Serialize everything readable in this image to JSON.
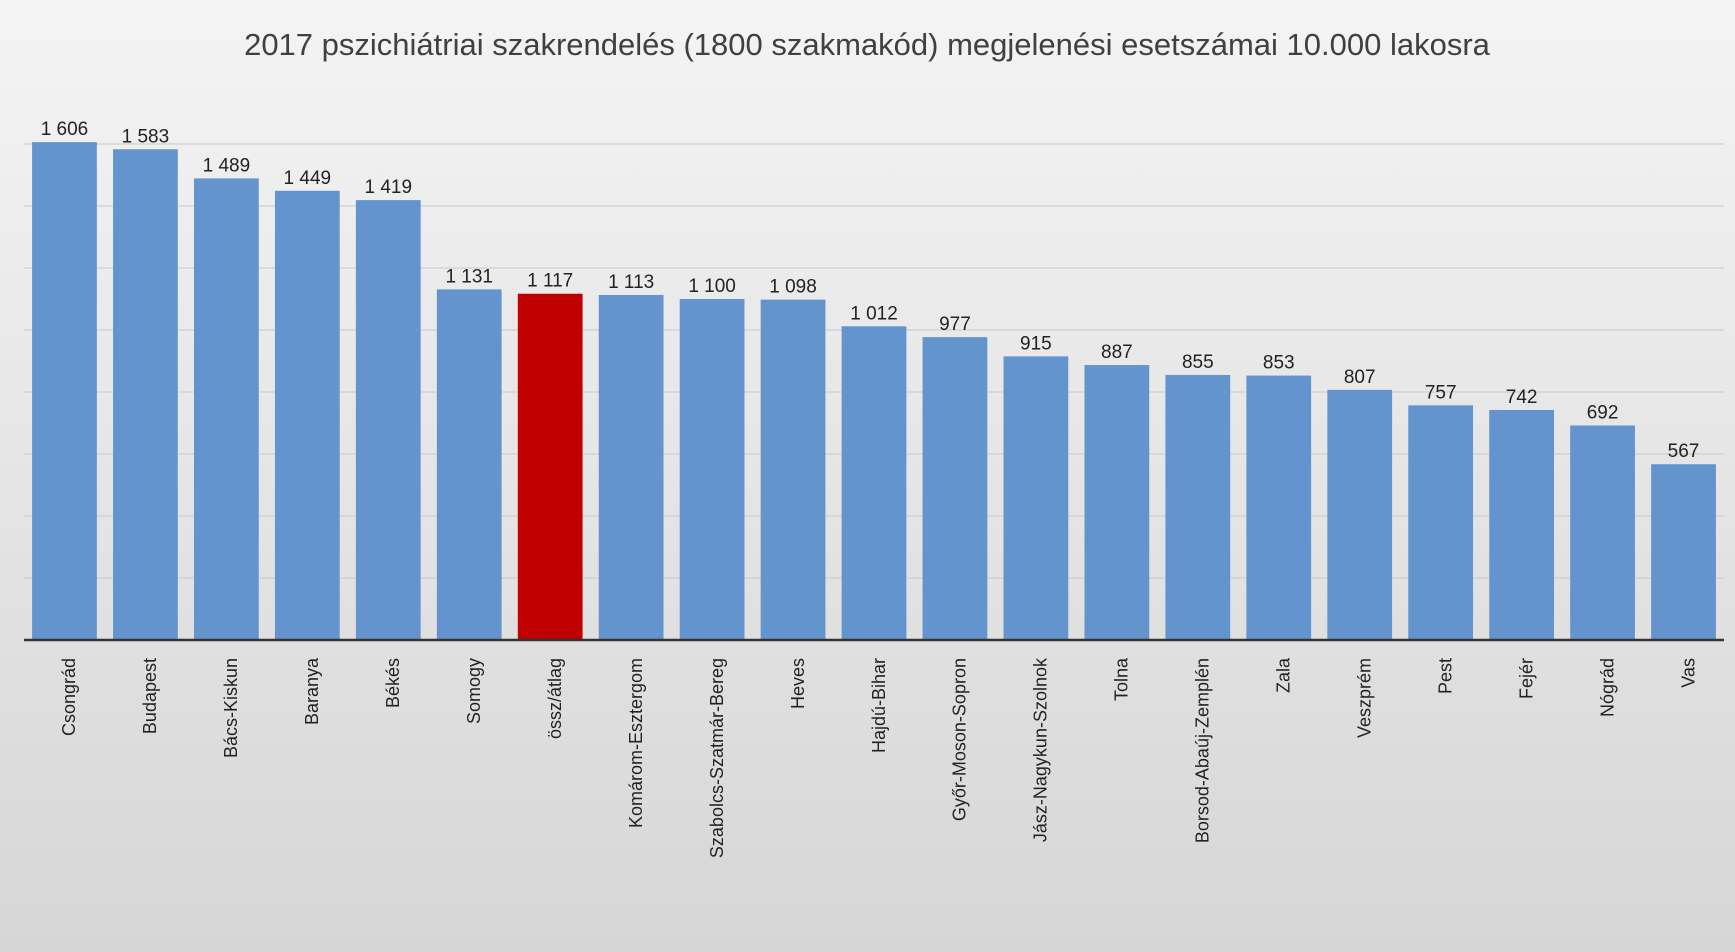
{
  "chart_data": {
    "type": "bar",
    "title": "2017 pszichiátriai szakrendelés (1800 szakmakód) megjelenési esetszámai 10.000 lakosra",
    "categories": [
      "Csongrád",
      "Budapest",
      "Bács-Kiskun",
      "Baranya",
      "Békés",
      "Somogy",
      "össz/átlag",
      "Komárom-Esztergom",
      "Szabolcs-Szatmár-Bereg",
      "Heves",
      "Hajdú-Bihar",
      "Győr-Moson-Sopron",
      "Jász-Nagykun-Szolnok",
      "Tolna",
      "Borsod-Abaúj-Zemplén",
      "Zala",
      "Veszprém",
      "Pest",
      "Fejér",
      "Nógrád",
      "Vas"
    ],
    "values": [
      1606,
      1583,
      1489,
      1449,
      1419,
      1131,
      1117,
      1113,
      1100,
      1098,
      1012,
      977,
      915,
      887,
      855,
      853,
      807,
      757,
      742,
      692,
      567
    ],
    "value_labels": [
      "1 606",
      "1 583",
      "1 489",
      "1 449",
      "1 419",
      "1 131",
      "1 117",
      "1 113",
      "1 100",
      "1 098",
      "1 012",
      "977",
      "915",
      "887",
      "855",
      "853",
      "807",
      "757",
      "742",
      "692",
      "567"
    ],
    "colors": [
      "#6494ce",
      "#6494ce",
      "#6494ce",
      "#6494ce",
      "#6494ce",
      "#6494ce",
      "#c00000",
      "#6494ce",
      "#6494ce",
      "#6494ce",
      "#6494ce",
      "#6494ce",
      "#6494ce",
      "#6494ce",
      "#6494ce",
      "#6494ce",
      "#6494ce",
      "#6494ce",
      "#6494ce",
      "#6494ce",
      "#6494ce"
    ],
    "ylim": [
      0,
      1700
    ],
    "yticks": [
      0,
      200,
      400,
      600,
      800,
      1000,
      1200,
      1400,
      1600
    ],
    "grid": true
  }
}
